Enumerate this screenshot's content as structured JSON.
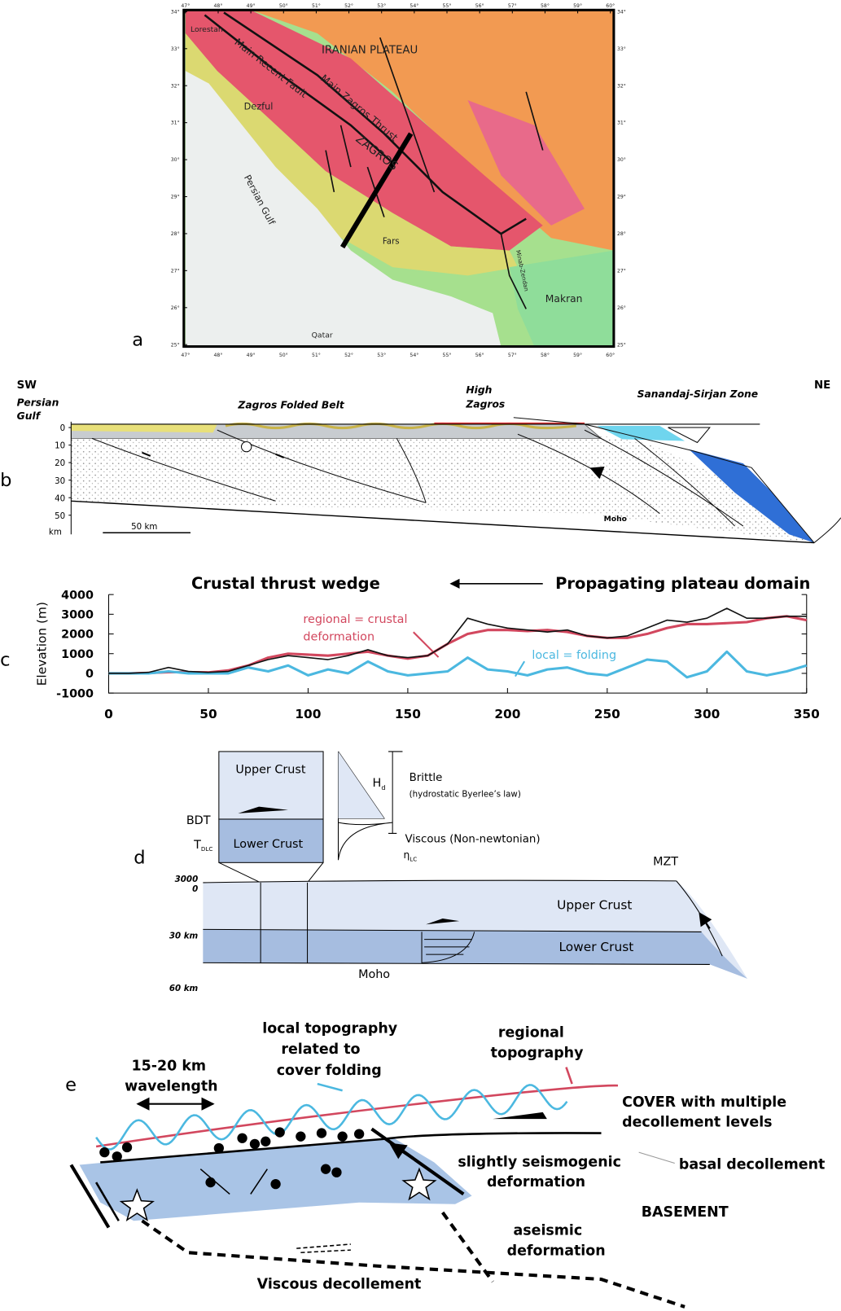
{
  "panel_a": {
    "label": "a",
    "lon_ticks": [
      {
        "value": 47,
        "label": "47°"
      },
      {
        "value": 48,
        "label": "48°"
      },
      {
        "value": 49,
        "label": "49°"
      },
      {
        "value": 50,
        "label": "50°"
      },
      {
        "value": 51,
        "label": "51°"
      },
      {
        "value": 52,
        "label": "52°"
      },
      {
        "value": 53,
        "label": "53°"
      },
      {
        "value": 54,
        "label": "54°"
      },
      {
        "value": 55,
        "label": "55°"
      },
      {
        "value": 56,
        "label": "56°"
      },
      {
        "value": 57,
        "label": "57°"
      },
      {
        "value": 58,
        "label": "58°"
      },
      {
        "value": 59,
        "label": "59°"
      },
      {
        "value": 60,
        "label": "60°"
      }
    ],
    "lat_ticks": [
      {
        "value": 34,
        "label": "34°"
      },
      {
        "value": 33,
        "label": "33°"
      },
      {
        "value": 32,
        "label": "32°"
      },
      {
        "value": 31,
        "label": "31°"
      },
      {
        "value": 30,
        "label": "30°"
      },
      {
        "value": 29,
        "label": "29°"
      },
      {
        "value": 28,
        "label": "28°"
      },
      {
        "value": 27,
        "label": "27°"
      },
      {
        "value": 26,
        "label": "26°"
      },
      {
        "value": 25,
        "label": "25°"
      }
    ],
    "places": {
      "lorestan": "Lorestan",
      "plateau": "IRANIAN PLATEAU",
      "mrf": "Main Recent Fault",
      "mzt": "Main Zagros Thrust",
      "dezful": "Dezful",
      "zagros": "ZAGROS",
      "gulf": "Persian Gulf",
      "fars": "Fars",
      "qatar": "Qatar",
      "makran": "Makran",
      "minab": "Minab-Zendan"
    }
  },
  "panel_b": {
    "label": "b",
    "sw": "SW",
    "ne": "NE",
    "persian_gulf": [
      "Persian",
      "Gulf"
    ],
    "folded_belt": "Zagros Folded Belt",
    "high_zagros": [
      "High",
      "Zagros"
    ],
    "ssz": "Sanandaj-Sirjan Zone",
    "depth_ticks": [
      0,
      10,
      20,
      30,
      40,
      50
    ],
    "depth_unit": "km",
    "scale_bar": "50 km",
    "moho": "Moho"
  },
  "chart_data": {
    "type": "line",
    "panel_label": "c",
    "ylabel": "Elevation (m)",
    "annotations": {
      "left": "Crustal thrust wedge",
      "right": "Propagating plateau domain",
      "regional": [
        "regional = crustal",
        "deformation"
      ],
      "local": "local = folding"
    },
    "x": [
      0,
      10,
      20,
      30,
      40,
      50,
      60,
      70,
      80,
      90,
      100,
      110,
      120,
      130,
      140,
      150,
      160,
      170,
      180,
      190,
      200,
      210,
      220,
      230,
      240,
      250,
      260,
      270,
      280,
      290,
      300,
      310,
      320,
      330,
      340,
      350
    ],
    "series": [
      {
        "color": "#d2475e",
        "values": [
          0,
          0,
          20,
          60,
          60,
          50,
          150,
          400,
          800,
          1000,
          950,
          900,
          1000,
          1100,
          900,
          750,
          900,
          1500,
          2000,
          2200,
          2200,
          2150,
          2200,
          2100,
          1900,
          1800,
          1800,
          2000,
          2300,
          2500,
          2500,
          2550,
          2600,
          2800,
          2900,
          2700
        ]
      },
      {
        "color": "#111111",
        "values": [
          0,
          0,
          50,
          300,
          100,
          50,
          100,
          400,
          700,
          900,
          800,
          700,
          900,
          1200,
          900,
          800,
          900,
          1500,
          2800,
          2500,
          2300,
          2200,
          2100,
          2200,
          1900,
          1800,
          1900,
          2300,
          2700,
          2600,
          2800,
          3300,
          2800,
          2800,
          2900,
          2900
        ]
      },
      {
        "color": "#4bb8e0",
        "values": [
          0,
          0,
          0,
          100,
          0,
          0,
          0,
          300,
          100,
          400,
          -100,
          200,
          0,
          600,
          100,
          -100,
          0,
          100,
          800,
          200,
          100,
          -100,
          200,
          300,
          0,
          -100,
          300,
          700,
          600,
          -200,
          100,
          1100,
          100,
          -100,
          100,
          400
        ]
      }
    ],
    "xlim": [
      0,
      350
    ],
    "ylim": [
      -1000,
      4000
    ],
    "xticks": [
      0,
      50,
      100,
      150,
      200,
      250,
      300,
      350
    ],
    "yticks": [
      -1000,
      0,
      1000,
      2000,
      3000,
      4000
    ]
  },
  "panel_d": {
    "label": "d",
    "inset_upper": "Upper Crust",
    "inset_lower": "Lower Crust",
    "bdt": "BDT",
    "t": "T",
    "t_sub": "DLC",
    "h": "H",
    "h_sub": "d",
    "brittle": "Brittle",
    "byerlee": "(hydrostatic Byerlee’s law)",
    "viscous": "Viscous (Non-newtonian)",
    "eta": "η",
    "eta_sub": "LC",
    "mzt": "MZT",
    "elev": "3000",
    "zero": "0",
    "d30": "30 km",
    "d60": "60 km",
    "upper": "Upper Crust",
    "lower": "Lower Crust",
    "moho": "Moho"
  },
  "panel_e": {
    "label": "e",
    "wavelength": [
      "15-20 km",
      "wavelength"
    ],
    "local_topo": [
      "local topography",
      "related to",
      "cover folding"
    ],
    "regional_topo": [
      "regional",
      "topography"
    ],
    "cover": [
      "COVER with multiple",
      "decollement levels"
    ],
    "basal": "basal decollement",
    "seismogenic": [
      "slightly seismogenic",
      "deformation"
    ],
    "basement": "BASEMENT",
    "aseismic": [
      "aseismic",
      "deformation"
    ],
    "viscous": "Viscous decollement"
  }
}
